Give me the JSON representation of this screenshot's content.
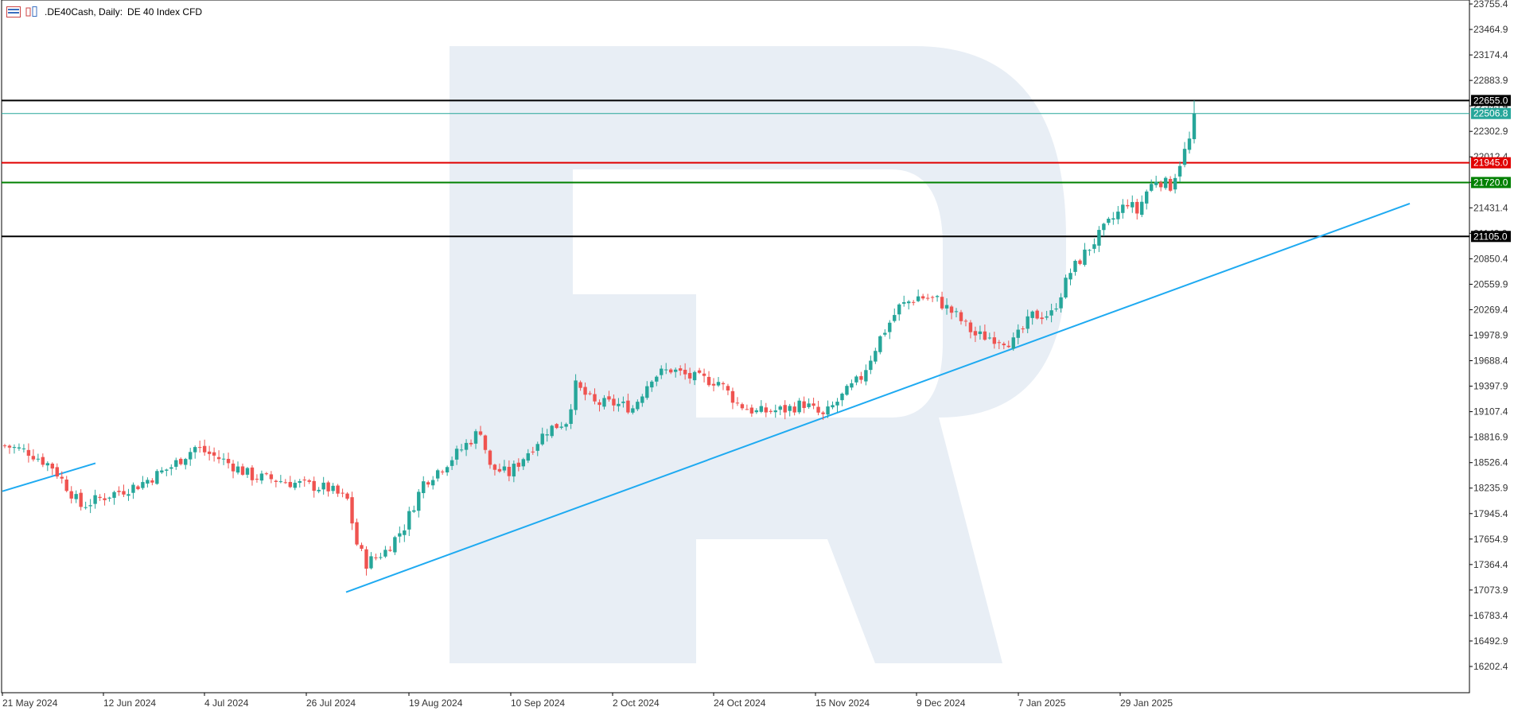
{
  "header": {
    "title": ".DE40Cash, Daily:",
    "subtitle": "DE 40 Index CFD"
  },
  "icons": [
    "bar-chart-icon",
    "candles-icon"
  ],
  "colors": {
    "bull": "#26a69a",
    "bear": "#ef5350",
    "trendline": "#1eaaf1",
    "current_price": "#26a69a",
    "resistance": "#e00000",
    "support": "#008000",
    "key_level": "#000000",
    "watermark": "#e8eef5"
  },
  "chart_data": {
    "type": "candlestick",
    "symbol": ".DE40Cash",
    "timeframe": "Daily",
    "description": "DE 40 Index CFD",
    "ylim": [
      15950,
      23850
    ],
    "y_ticks": [
      "23755.4",
      "23464.9",
      "23174.4",
      "22883.9",
      "22593.4",
      "22302.9",
      "22012.4",
      "21721.9",
      "21431.4",
      "21140.9",
      "20850.4",
      "20559.9",
      "20269.4",
      "19978.9",
      "19688.4",
      "19397.9",
      "19107.4",
      "18816.9",
      "18526.4",
      "18235.9",
      "17945.4",
      "17654.9",
      "17364.4",
      "17073.9",
      "16783.4",
      "16492.9",
      "16202.4"
    ],
    "x_ticks": [
      "21 May 2024",
      "12 Jun 2024",
      "4 Jul 2024",
      "26 Jul 2024",
      "19 Aug 2024",
      "10 Sep 2024",
      "2 Oct 2024",
      "24 Oct 2024",
      "15 Nov 2024",
      "9 Dec 2024",
      "7 Jan 2025",
      "29 Jan 2025"
    ],
    "close_path": [
      [
        0,
        18720
      ],
      [
        5,
        18650
      ],
      [
        10,
        18480
      ],
      [
        16,
        18030
      ],
      [
        22,
        18160
      ],
      [
        28,
        18270
      ],
      [
        35,
        18480
      ],
      [
        40,
        18700
      ],
      [
        46,
        18550
      ],
      [
        52,
        18370
      ],
      [
        56,
        18340
      ],
      [
        60,
        18300
      ],
      [
        68,
        18230
      ],
      [
        72,
        18100
      ],
      [
        74,
        17600
      ],
      [
        76,
        17380
      ],
      [
        80,
        17520
      ],
      [
        84,
        17800
      ],
      [
        88,
        18300
      ],
      [
        92,
        18480
      ],
      [
        96,
        18680
      ],
      [
        100,
        18900
      ],
      [
        102,
        18470
      ],
      [
        106,
        18400
      ],
      [
        110,
        18650
      ],
      [
        114,
        18900
      ],
      [
        118,
        19000
      ],
      [
        120,
        19400
      ],
      [
        124,
        19200
      ],
      [
        128,
        19200
      ],
      [
        132,
        19150
      ],
      [
        136,
        19510
      ],
      [
        140,
        19590
      ],
      [
        144,
        19500
      ],
      [
        150,
        19450
      ],
      [
        154,
        19200
      ],
      [
        158,
        19100
      ],
      [
        164,
        19130
      ],
      [
        168,
        19200
      ],
      [
        172,
        19050
      ],
      [
        176,
        19280
      ],
      [
        180,
        19500
      ],
      [
        184,
        19950
      ],
      [
        188,
        20300
      ],
      [
        192,
        20420
      ],
      [
        196,
        20380
      ],
      [
        200,
        20200
      ],
      [
        204,
        19980
      ],
      [
        208,
        19950
      ],
      [
        212,
        19900
      ],
      [
        216,
        20200
      ],
      [
        220,
        20220
      ],
      [
        224,
        20700
      ],
      [
        228,
        20980
      ],
      [
        232,
        21250
      ],
      [
        234,
        21370
      ],
      [
        236,
        21500
      ],
      [
        238,
        21380
      ],
      [
        240,
        21620
      ],
      [
        242,
        21760
      ],
      [
        245,
        21680
      ],
      [
        247,
        21950
      ],
      [
        249,
        22200
      ],
      [
        250,
        22507
      ]
    ],
    "candles": [],
    "horizontal_levels": [
      {
        "label": "22655.0",
        "value": 22655.0,
        "color": "#000000",
        "kind": "level"
      },
      {
        "label": "22506.8",
        "value": 22506.8,
        "color": "#26a69a",
        "kind": "current"
      },
      {
        "label": "21945.0",
        "value": 21945.0,
        "color": "#e00000",
        "kind": "resistance"
      },
      {
        "label": "21720.0",
        "value": 21720.0,
        "color": "#008000",
        "kind": "support"
      },
      {
        "label": "21105.0",
        "value": 21105.0,
        "color": "#000000",
        "kind": "level"
      }
    ],
    "trendlines": [
      {
        "from": {
          "date": "26 Jul 2024",
          "value": 17050
        },
        "to": {
          "date": "Feb 2025",
          "value": 21450
        },
        "color": "#1eaaf1"
      },
      {
        "from": {
          "date": "21 May 2024",
          "value": 18200
        },
        "to": {
          "date": "30 May 2024",
          "value": 18520
        },
        "color": "#1eaaf1"
      }
    ]
  }
}
